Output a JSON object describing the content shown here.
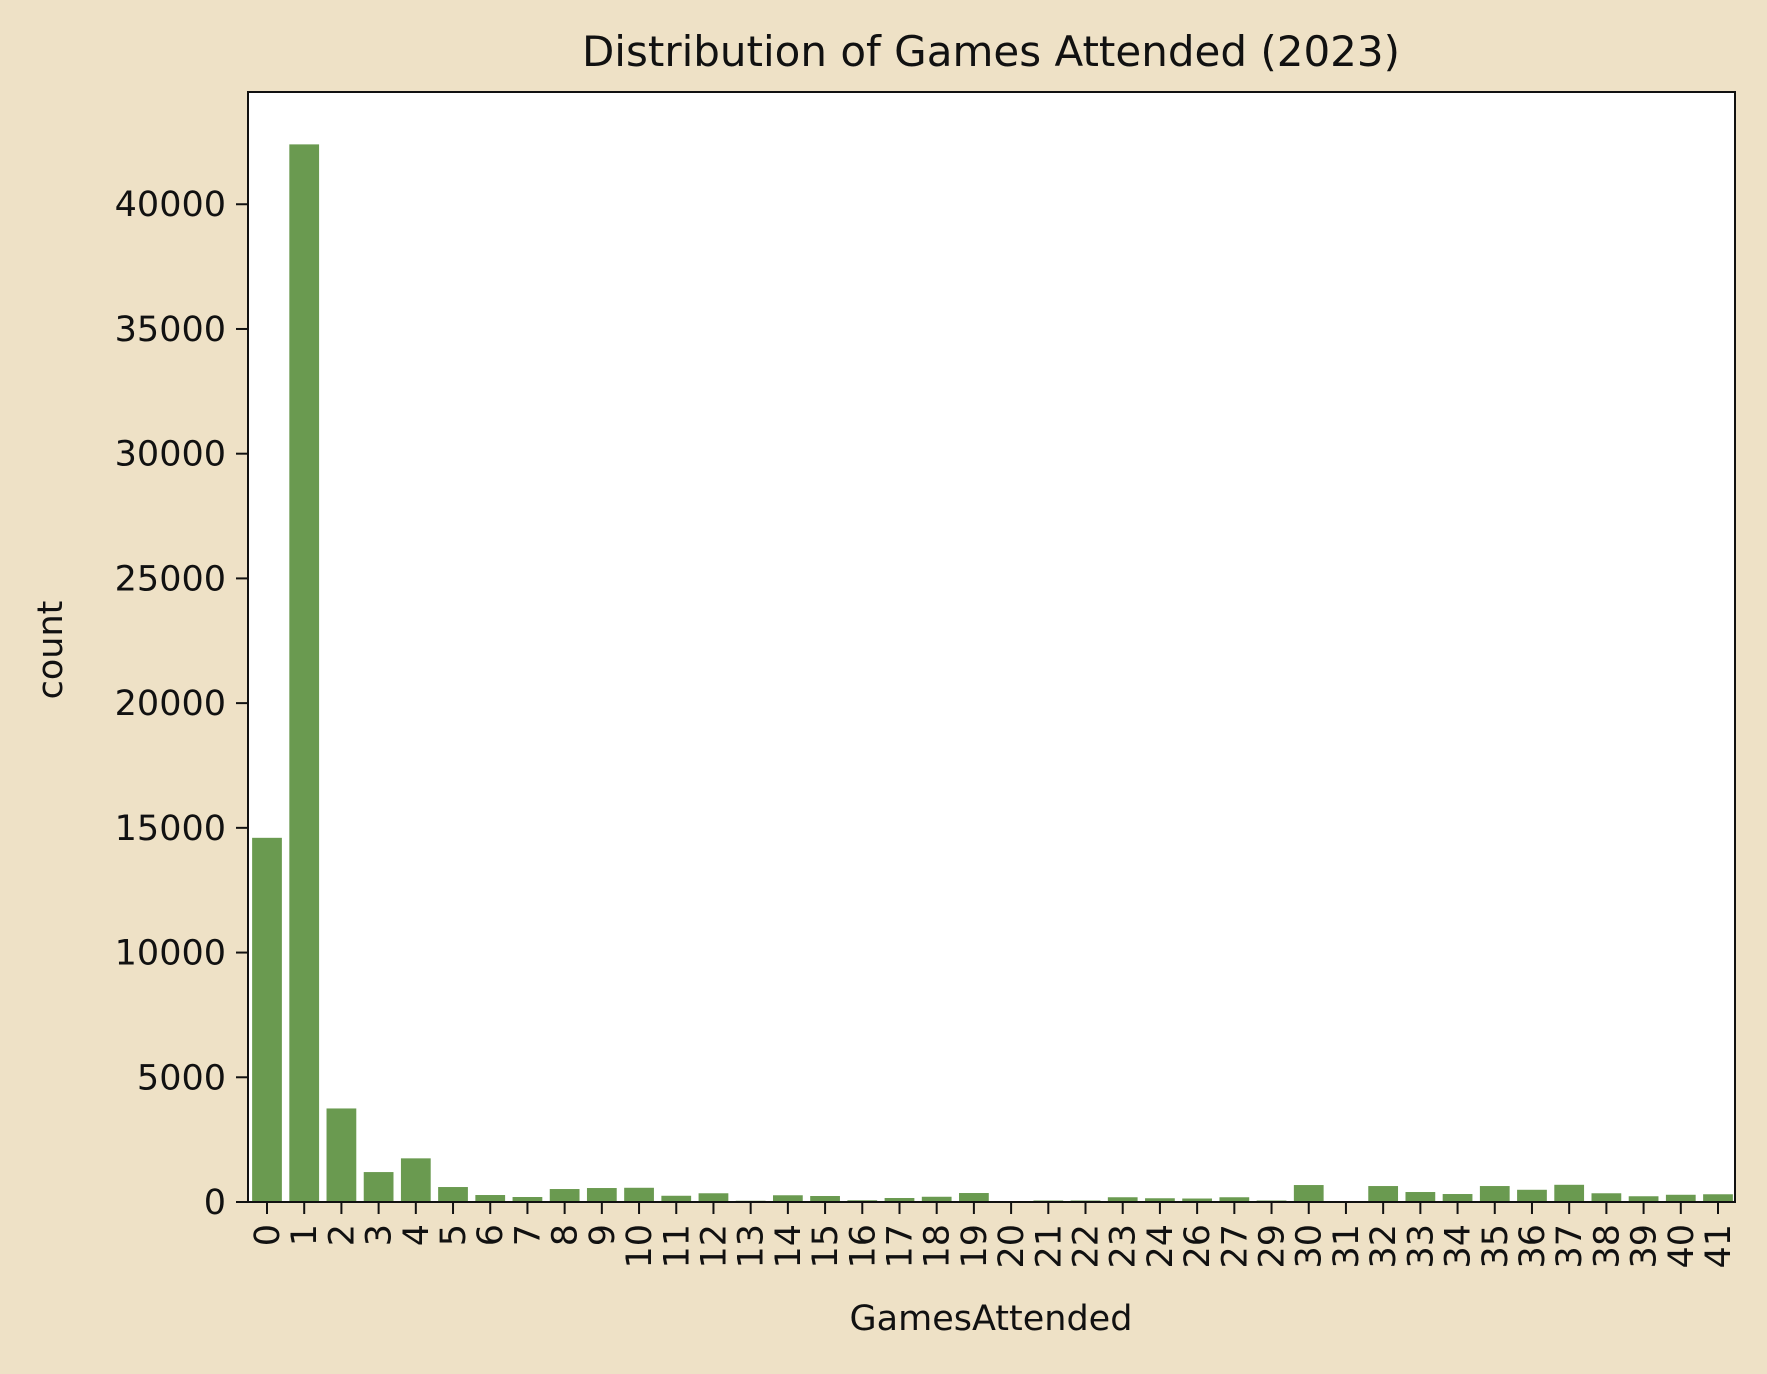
{
  "chart_data": {
    "type": "bar",
    "title": "Distribution of Games Attended (2023)",
    "xlabel": "GamesAttended",
    "ylabel": "count",
    "ylim": [
      0,
      44500
    ],
    "yticks": [
      0,
      5000,
      10000,
      15000,
      20000,
      25000,
      30000,
      35000,
      40000
    ],
    "grid": false,
    "categories": [
      "0",
      "1",
      "2",
      "3",
      "4",
      "5",
      "6",
      "7",
      "8",
      "9",
      "10",
      "11",
      "12",
      "13",
      "14",
      "15",
      "16",
      "17",
      "18",
      "19",
      "20",
      "21",
      "22",
      "23",
      "24",
      "26",
      "27",
      "29",
      "30",
      "31",
      "32",
      "33",
      "34",
      "35",
      "36",
      "37",
      "38",
      "39",
      "40",
      "41"
    ],
    "values": [
      14600,
      42400,
      3750,
      1200,
      1750,
      600,
      280,
      200,
      520,
      560,
      570,
      250,
      350,
      50,
      270,
      240,
      70,
      160,
      210,
      360,
      30,
      60,
      60,
      190,
      150,
      140,
      190,
      60,
      680,
      40,
      640,
      400,
      320,
      640,
      490,
      690,
      350,
      230,
      290,
      310
    ],
    "colors": {
      "bar": "#6a9a50",
      "background": "#eee1c6",
      "plot_area": "#ffffff",
      "axis": "#111111"
    }
  }
}
